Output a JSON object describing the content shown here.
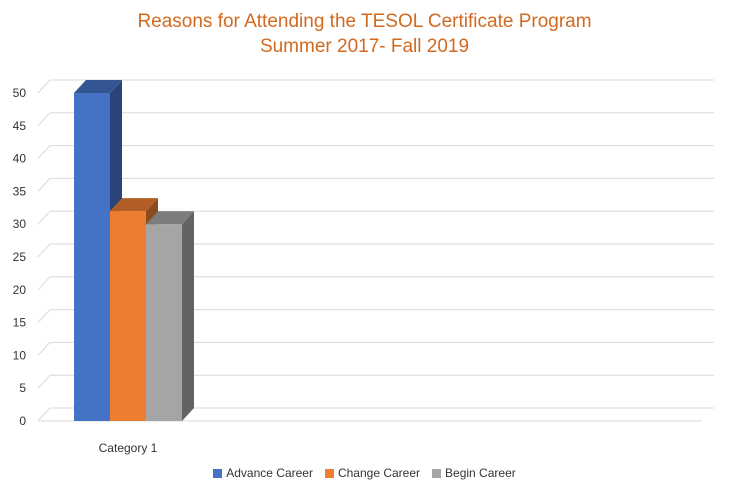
{
  "colors": {
    "title": "#D2691E",
    "series": [
      "#4472C4",
      "#ED7D31",
      "#A5A5A5"
    ],
    "grid": "#D9D9D9",
    "axis_text": "#333333"
  },
  "chart_data": {
    "type": "bar",
    "title": "Reasons for Attending the TESOL Certificate Program",
    "subtitle": "Summer 2017- Fall 2019",
    "categories": [
      "Category 1"
    ],
    "series": [
      {
        "name": "Advance Career",
        "values": [
          50
        ]
      },
      {
        "name": "Change Career",
        "values": [
          32
        ]
      },
      {
        "name": "Begin Career",
        "values": [
          30
        ]
      }
    ],
    "ylim": [
      0,
      50
    ],
    "yticks": [
      0,
      5,
      10,
      15,
      20,
      25,
      30,
      35,
      40,
      45,
      50
    ],
    "grid": true,
    "legend": "bottom",
    "three_d": true
  }
}
